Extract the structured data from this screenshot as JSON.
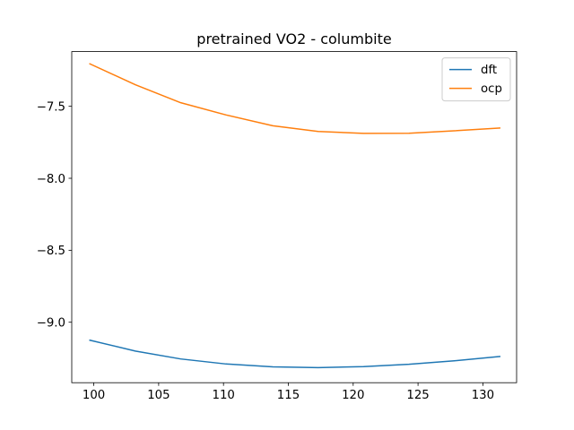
{
  "chart_data": {
    "type": "line",
    "title": "pretrained VO2 - columbite",
    "xlabel": "",
    "ylabel": "",
    "xlim": [
      98.3,
      132.6
    ],
    "ylim": [
      -9.42,
      -7.12
    ],
    "xticks": [
      100,
      105,
      110,
      115,
      120,
      125,
      130
    ],
    "yticks": [
      -9.0,
      -8.5,
      -8.0,
      -7.5
    ],
    "xtick_labels": [
      "100",
      "105",
      "110",
      "115",
      "120",
      "125",
      "130"
    ],
    "ytick_labels": [
      "−9.0",
      "−8.5",
      "−8.0",
      "−7.5"
    ],
    "grid": false,
    "legend_position": "top-right",
    "x": [
      99.7,
      103.2,
      106.7,
      110.2,
      113.8,
      117.3,
      120.8,
      124.3,
      127.8,
      131.3
    ],
    "series": [
      {
        "name": "dft",
        "color": "#1f77b4",
        "values": [
          -9.125,
          -9.2,
          -9.255,
          -9.29,
          -9.31,
          -9.315,
          -9.308,
          -9.292,
          -9.268,
          -9.238
        ]
      },
      {
        "name": "ocp",
        "color": "#ff7f0e",
        "values": [
          -7.205,
          -7.35,
          -7.475,
          -7.56,
          -7.635,
          -7.675,
          -7.688,
          -7.687,
          -7.67,
          -7.651
        ]
      }
    ]
  }
}
